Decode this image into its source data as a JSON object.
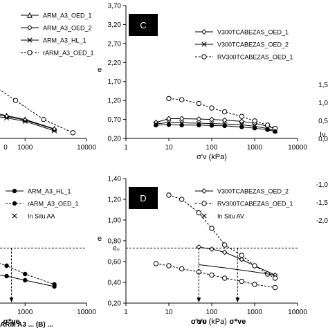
{
  "chart_data": [
    {
      "type": "line",
      "panel": "top-left",
      "x_log": true,
      "xlim": [
        1,
        10000
      ],
      "ylim": [
        0.2,
        3.7
      ],
      "x_ticks": [
        "0",
        "1000",
        "10000"
      ],
      "legend_position": "top-right",
      "series": [
        {
          "name": "ARM_A3_OED_1",
          "marker": "triangle",
          "x": [
            1,
            10,
            100,
            500,
            1000,
            3000
          ],
          "y": [
            1.75,
            1.4,
            1.05,
            0.8,
            0.7,
            0.45
          ]
        },
        {
          "name": "ARM_A3_OED_2",
          "marker": "diamond",
          "x": [
            1,
            10,
            100,
            500,
            1000,
            3000
          ],
          "y": [
            1.55,
            1.25,
            0.98,
            0.78,
            0.68,
            0.44
          ]
        },
        {
          "name": "ARM_A3_HL_1",
          "marker": "cross",
          "x": [
            1,
            10,
            100,
            500,
            1000,
            3000
          ],
          "y": [
            1.3,
            1.1,
            0.9,
            0.74,
            0.65,
            0.4
          ]
        },
        {
          "name": "rARM_A3_OED_1",
          "marker": "circle",
          "dashed": true,
          "x": [
            1,
            10,
            100,
            300,
            700,
            2000,
            6000
          ],
          "y": [
            3.5,
            2.9,
            2.2,
            1.6,
            1.2,
            0.7,
            0.35
          ]
        }
      ]
    },
    {
      "type": "line",
      "panel": "top-middle",
      "panel_label": "C",
      "x_log": true,
      "xlim": [
        1,
        10000
      ],
      "ylim": [
        0.2,
        3.7
      ],
      "y_ticks": [
        "3,70",
        "3,20",
        "2,70",
        "2,20",
        "1,70",
        "1,20",
        "0,70",
        "0,20"
      ],
      "x_ticks": [
        "1",
        "10",
        "100",
        "1000",
        "10000"
      ],
      "ylabel": "e",
      "xlabel": "σ'v (kPa)",
      "legend_position": "top-right",
      "series": [
        {
          "name": "V300TCABEZAS_OED_1",
          "marker": "diamond",
          "x": [
            5,
            10,
            20,
            50,
            100,
            200,
            500,
            1000,
            2000,
            3000
          ],
          "y": [
            0.62,
            0.72,
            0.72,
            0.71,
            0.7,
            0.68,
            0.65,
            0.6,
            0.52,
            0.45
          ]
        },
        {
          "name": "V300TCABEZAS_OED_2",
          "marker": "cross",
          "x": [
            5,
            10,
            20,
            50,
            100,
            200,
            500,
            1000,
            2000,
            3000
          ],
          "y": [
            0.58,
            0.62,
            0.61,
            0.6,
            0.59,
            0.58,
            0.56,
            0.52,
            0.46,
            0.4
          ]
        },
        {
          "name": "RV300TCABEZAS_OED_1",
          "marker": "circle",
          "dashed": true,
          "x": [
            10,
            20,
            50,
            100,
            200,
            500,
            1000,
            2000,
            3000
          ],
          "y": [
            1.25,
            1.22,
            1.12,
            1.0,
            0.9,
            0.78,
            0.66,
            0.55,
            0.46
          ]
        },
        {
          "name": "",
          "marker": "dot",
          "x": [
            5,
            10,
            20,
            50,
            100,
            200,
            500,
            1000,
            2000,
            3000
          ],
          "y": [
            0.55,
            0.56,
            0.55,
            0.55,
            0.54,
            0.53,
            0.5,
            0.47,
            0.43,
            0.38
          ]
        }
      ]
    },
    {
      "type": "line",
      "panel": "top-right-partial",
      "y_ticks": [
        "1,5",
        "1,0",
        "0,5",
        "0,0"
      ],
      "ylabel": "Iv"
    },
    {
      "type": "line",
      "panel": "bottom-left",
      "x_log": true,
      "xlim": [
        1,
        10000
      ],
      "x_ticks": [
        "10",
        "100",
        "1000",
        "10000"
      ],
      "legend_position": "top-right",
      "annotation": "σ*ve",
      "series": [
        {
          "name": "ARM_A3_HL_1",
          "marker": "dot",
          "x": [
            1,
            10,
            100,
            500,
            1000,
            3000
          ],
          "y": [
            0.62,
            0.58,
            0.52,
            0.46,
            0.42,
            0.36
          ]
        },
        {
          "name": "rARM_A3_OED_1",
          "marker": "dot",
          "dashed": true,
          "x": [
            1,
            10,
            100,
            500,
            1000,
            3000
          ],
          "y": [
            0.95,
            0.85,
            0.7,
            0.56,
            0.48,
            0.38
          ]
        },
        {
          "name": "In Situ AA",
          "marker": "x",
          "x": [],
          "y": []
        }
      ]
    },
    {
      "type": "line",
      "panel": "bottom-middle",
      "panel_label": "D",
      "x_log": true,
      "xlim": [
        1,
        10000
      ],
      "ylim": [
        0.2,
        1.4
      ],
      "y_ticks": [
        "1,40",
        "1,20",
        "1,00",
        "0,80",
        "0,60",
        "0,40",
        "0,20"
      ],
      "y_annotation": "e₀",
      "x_ticks": [
        "1",
        "10",
        "100",
        "1000",
        "10000"
      ],
      "ylabel": "e",
      "xlabel": "σ'v (kPa)",
      "legend_position": "top-right",
      "annotations": [
        "σ'vo",
        "σ*ve"
      ],
      "series": [
        {
          "name": "V300TCABEZAS_OED_2",
          "marker": "diamond",
          "x": [
            50,
            100,
            200,
            500,
            1000,
            3000
          ],
          "y": [
            0.74,
            0.72,
            0.69,
            0.62,
            0.56,
            0.47
          ]
        },
        {
          "name": "RV300TCABEZAS_OED_1",
          "marker": "circle",
          "dashed": true,
          "x": [
            10,
            20,
            50,
            100,
            200,
            500,
            1000,
            2000,
            3000
          ],
          "y": [
            1.24,
            1.2,
            1.07,
            0.92,
            0.76,
            0.66,
            0.56,
            0.48,
            0.44
          ]
        },
        {
          "name": "In Situ AV",
          "marker": "x",
          "x": [],
          "y": []
        },
        {
          "name": "",
          "marker": "circle",
          "dashed": true,
          "x": [
            5,
            10,
            20,
            50,
            100,
            200,
            500,
            1000,
            3000
          ],
          "y": [
            0.58,
            0.56,
            0.53,
            0.5,
            0.47,
            0.44,
            0.41,
            0.38,
            0.35
          ]
        },
        {
          "name": "",
          "marker": "none",
          "x": [
            50,
            200,
            1000,
            3000
          ],
          "y": [
            0.57,
            0.54,
            0.5,
            0.47
          ]
        }
      ]
    },
    {
      "type": "line",
      "panel": "bottom-right-partial",
      "y_ticks": [
        "-1,0",
        "-1,5",
        "-2,0"
      ]
    }
  ],
  "caption": "ARM A3 ... (B) ..."
}
